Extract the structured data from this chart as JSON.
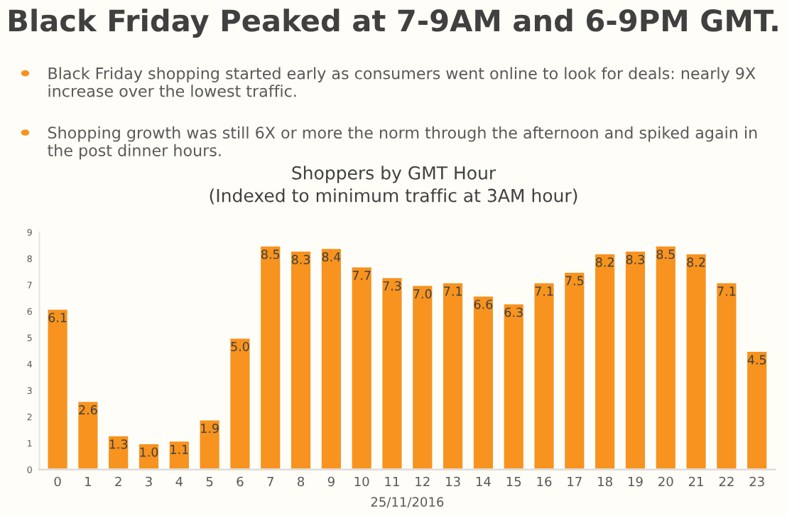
{
  "chart_data": {
    "type": "bar",
    "title": "Shoppers by GMT Hour\n(Indexed to minimum traffic at 3AM hour)",
    "subtitle": "Black Friday Peaked at 7-9AM and 6-9PM GMT.",
    "annotations": [
      "Black Friday shopping started early as consumers went online to look for deals: nearly 9X increase over the lowest traffic.",
      "Shopping growth was still 6X or more the norm through the afternoon and spiked again in the post dinner hours."
    ],
    "xlabel": "25/11/2016",
    "categories": [
      "0",
      "1",
      "2",
      "3",
      "4",
      "5",
      "6",
      "7",
      "8",
      "9",
      "10",
      "11",
      "12",
      "13",
      "14",
      "15",
      "16",
      "17",
      "18",
      "19",
      "20",
      "21",
      "22",
      "23"
    ],
    "values": [
      6.1,
      2.6,
      1.3,
      1.0,
      1.1,
      1.9,
      5.0,
      8.5,
      8.3,
      8.4,
      7.7,
      7.3,
      7.0,
      7.1,
      6.6,
      6.3,
      7.1,
      7.5,
      8.2,
      8.3,
      8.5,
      8.2,
      7.1,
      4.5
    ],
    "color": "#f7931e",
    "ylim": [
      0,
      9
    ],
    "yticks": [
      0,
      1,
      2,
      3,
      4,
      5,
      6,
      7,
      8,
      9
    ],
    "value_labels": [
      "6.1",
      "2.6",
      "1.3",
      "1.0",
      "1.1",
      "1.9",
      "5.0",
      "8.5",
      "8.3",
      "8.4",
      "7.7",
      "7.3",
      "7.0",
      "7.1",
      "6.6",
      "6.3",
      "7.1",
      "7.5",
      "8.2",
      "8.3",
      "8.5",
      "8.2",
      "7.1",
      "4.5"
    ],
    "grid": false,
    "legend": false
  }
}
